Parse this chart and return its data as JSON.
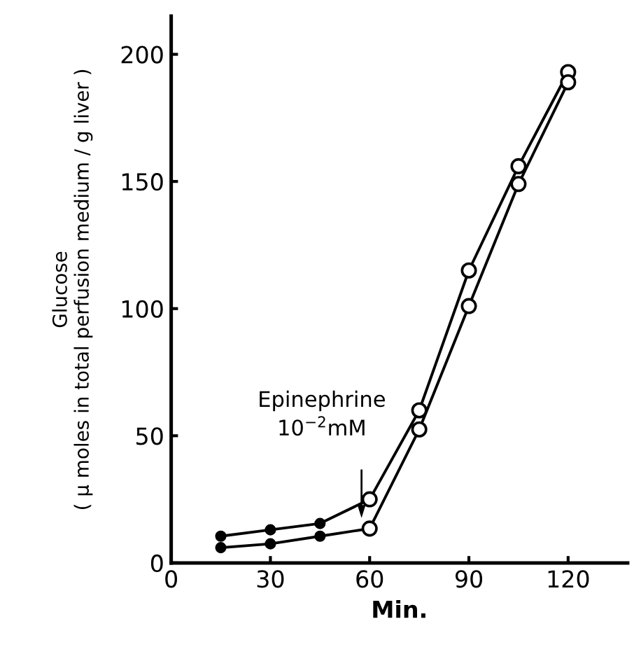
{
  "chart_data": {
    "type": "line",
    "xlabel": "Min.",
    "ylabel": "Glucose\n( μ moles in total perfusion medium / g liver )",
    "x": [
      15,
      30,
      45,
      60,
      75,
      90,
      105,
      120
    ],
    "series": [
      {
        "color": "#000000",
        "colors": [
          "#000000",
          "#000000",
          "#000000",
          "#ffffff",
          "#ffffff",
          "#ffffff",
          "#ffffff",
          "#ffffff"
        ],
        "values": [
          10.5,
          13,
          15.5,
          25,
          60,
          115,
          156,
          193
        ]
      },
      {
        "color": "#000000",
        "colors": [
          "#000000",
          "#000000",
          "#000000",
          "#ffffff",
          "#ffffff",
          "#ffffff",
          "#ffffff",
          "#ffffff"
        ],
        "values": [
          6,
          7.5,
          10.5,
          13.5,
          52.5,
          101,
          149,
          189
        ]
      }
    ],
    "annotations": [
      "Epinephrine\n10$^{−2}$mM"
    ],
    "xlim": [
      0,
      138
    ],
    "xticks": [
      0,
      30,
      60,
      90,
      120
    ],
    "ylim": [
      0,
      215
    ],
    "yticks": [
      0,
      50,
      100,
      150,
      200
    ],
    "marker": "circle",
    "line_style": "solid",
    "grid": false,
    "legend": false
  }
}
